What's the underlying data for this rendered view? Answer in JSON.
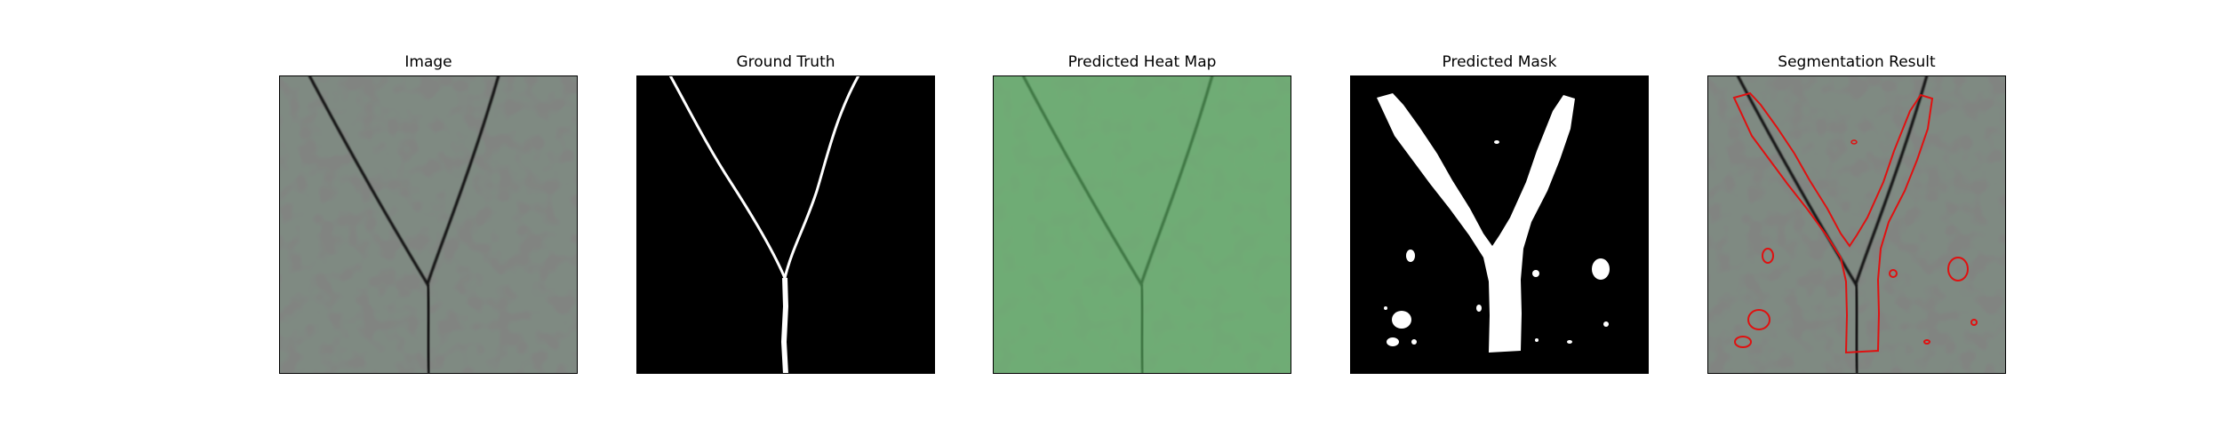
{
  "figure": {
    "panels": [
      {
        "title": "Image"
      },
      {
        "title": "Ground Truth"
      },
      {
        "title": "Predicted Heat Map"
      },
      {
        "title": "Predicted Mask"
      },
      {
        "title": "Segmentation Result"
      }
    ]
  },
  "colors": {
    "background": "#ffffff",
    "image_base": "#7f8a82",
    "image_spot": "#3b3d3b",
    "crack": "#141414",
    "ground_truth_bg": "#000000",
    "ground_truth_fg": "#ffffff",
    "heatmap_overlay": "#63c96b",
    "mask_bg": "#000000",
    "mask_fg": "#ffffff",
    "contour": "#e01010",
    "axes_border": "#000000"
  }
}
